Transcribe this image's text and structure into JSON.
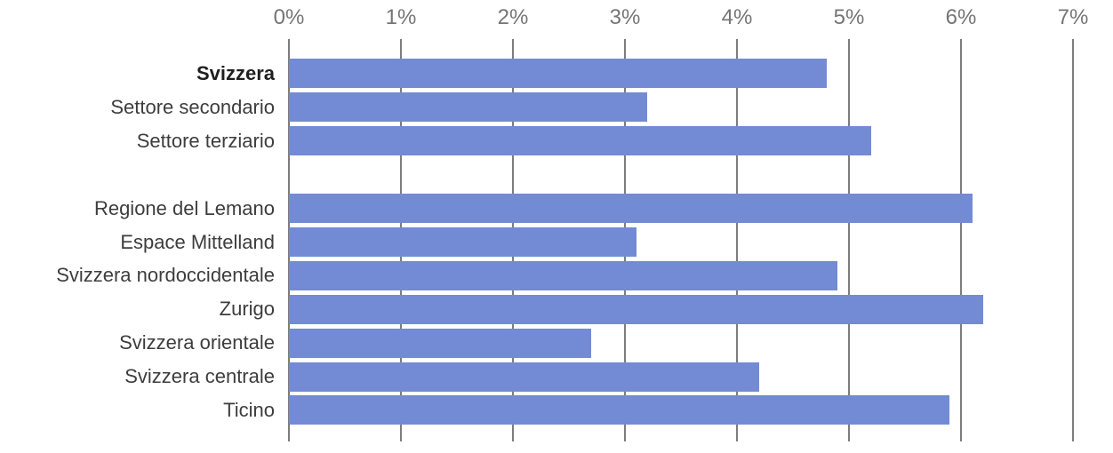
{
  "chart_data": {
    "type": "bar",
    "orientation": "horizontal",
    "title": "",
    "xlabel": "",
    "ylabel": "",
    "unit": "%",
    "grid": true,
    "legend": "none",
    "x_axis": {
      "position": "top",
      "range": [
        0,
        7
      ],
      "tick_values": [
        0,
        1,
        2,
        3,
        4,
        5,
        6,
        7
      ],
      "tick_labels": [
        "0%",
        "1%",
        "2%",
        "3%",
        "4%",
        "5%",
        "6%",
        "7%"
      ]
    },
    "rows": [
      {
        "label": "Svizzera",
        "value": 4.8,
        "bold": true,
        "spacer": false
      },
      {
        "label": "Settore secondario",
        "value": 3.2,
        "bold": false,
        "spacer": false
      },
      {
        "label": "Settore terziario",
        "value": 5.2,
        "bold": false,
        "spacer": false
      },
      {
        "label": "",
        "value": null,
        "bold": false,
        "spacer": true
      },
      {
        "label": "Regione del Lemano",
        "value": 6.1,
        "bold": false,
        "spacer": false
      },
      {
        "label": "Espace Mittelland",
        "value": 3.1,
        "bold": false,
        "spacer": false
      },
      {
        "label": "Svizzera nordoccidentale",
        "value": 4.9,
        "bold": false,
        "spacer": false
      },
      {
        "label": "Zurigo",
        "value": 6.2,
        "bold": false,
        "spacer": false
      },
      {
        "label": "Svizzera orientale",
        "value": 2.7,
        "bold": false,
        "spacer": false
      },
      {
        "label": "Svizzera centrale",
        "value": 4.2,
        "bold": false,
        "spacer": false
      },
      {
        "label": "Ticino",
        "value": 5.9,
        "bold": false,
        "spacer": false
      }
    ],
    "colors": {
      "bar": "#738bd4",
      "gridline": "#7d7d7d",
      "axis_label": "#757575",
      "category_label": "#3d3d3d",
      "category_label_bold": "#1f1f1f",
      "background": "#ffffff"
    }
  }
}
